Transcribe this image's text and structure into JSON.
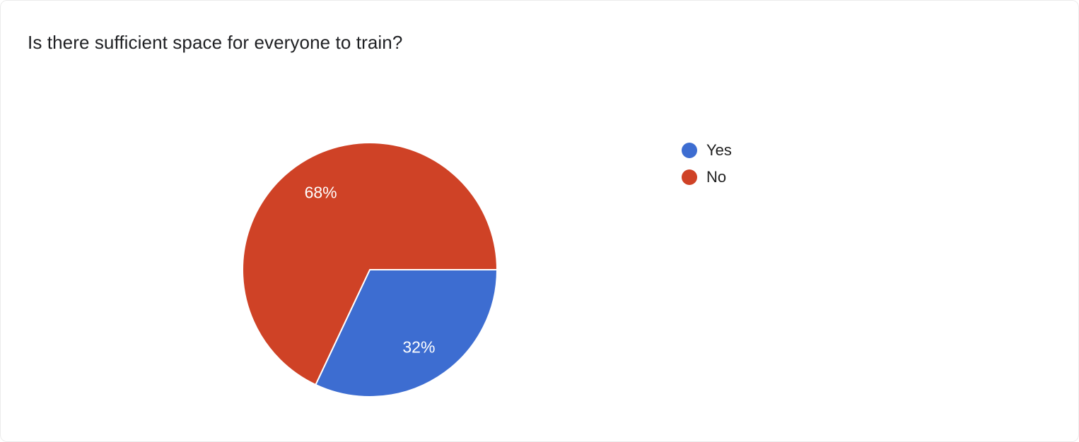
{
  "page": {
    "background": "#ffffff"
  },
  "chart_data": {
    "type": "pie",
    "title": "Is there sufficient space for everyone to train?",
    "categories": [
      "Yes",
      "No"
    ],
    "values": [
      32,
      68
    ],
    "slice_labels": [
      "32%",
      "68%"
    ],
    "colors": [
      "#3d6dd1",
      "#cf4226"
    ],
    "slice_border_color": "#ffffff",
    "slice_label_color": "#ffffff",
    "start_angle_deg": 0,
    "direction": "clockwise",
    "legend_position": "right",
    "legend": [
      {
        "label": "Yes",
        "color": "#3d6dd1"
      },
      {
        "label": "No",
        "color": "#cf4226"
      }
    ]
  }
}
